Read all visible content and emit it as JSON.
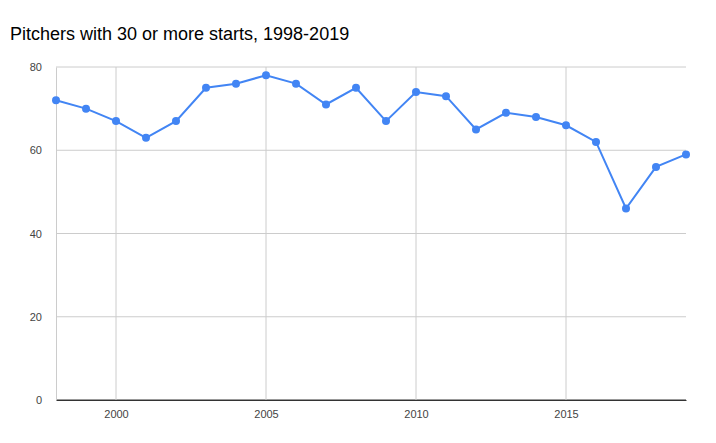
{
  "chart_data": {
    "type": "line",
    "title": "Pitchers with 30 or more starts, 1998-2019",
    "x": [
      1998,
      1999,
      2000,
      2001,
      2002,
      2003,
      2004,
      2005,
      2006,
      2007,
      2008,
      2009,
      2010,
      2011,
      2012,
      2013,
      2014,
      2015,
      2016,
      2017,
      2018,
      2019
    ],
    "values": [
      72,
      70,
      67,
      63,
      67,
      75,
      76,
      78,
      76,
      71,
      75,
      67,
      74,
      73,
      65,
      69,
      68,
      66,
      62,
      46,
      56,
      59
    ],
    "color": "#4285f4",
    "marker": "circle",
    "xlim": [
      1998,
      2019
    ],
    "xticks": [
      2000,
      2005,
      2010,
      2015
    ],
    "ylim": [
      0,
      80
    ],
    "yticks": [
      0,
      20,
      40,
      60,
      80
    ],
    "grid": true
  }
}
